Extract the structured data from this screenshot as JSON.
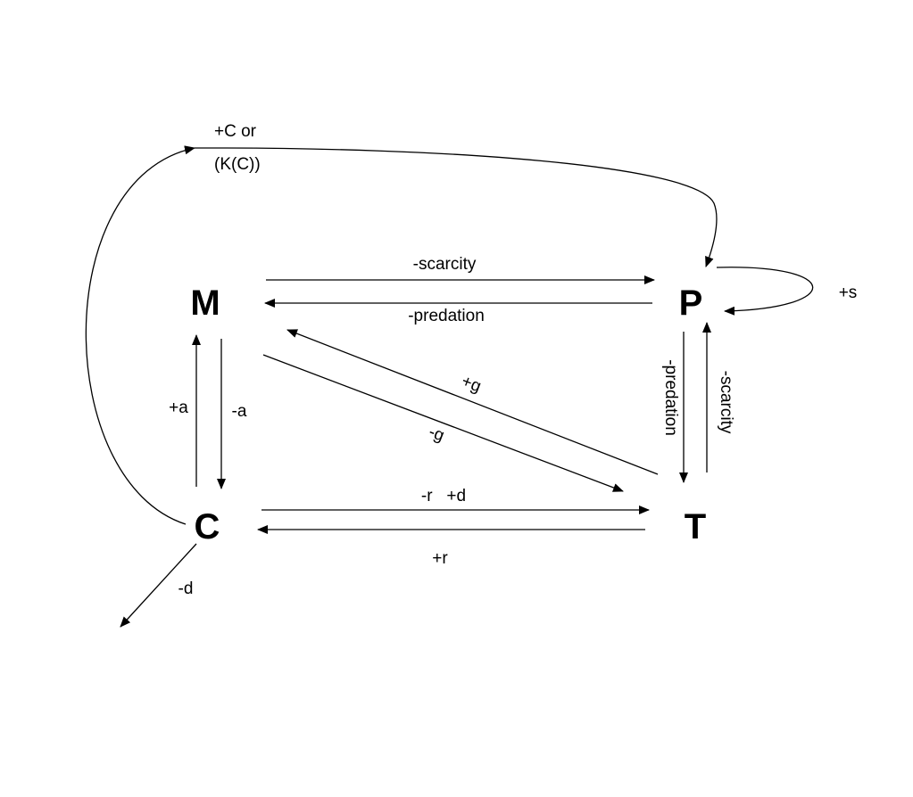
{
  "diagram": {
    "nodes": {
      "M": "M",
      "P": "P",
      "C": "C",
      "T": "T"
    },
    "edges": {
      "m_to_p": "-scarcity",
      "p_to_m": "-predation",
      "p_self": "+s",
      "c_to_m": "+a",
      "m_to_c": "-a",
      "p_to_t": "-predation",
      "t_to_p": "-scarcity",
      "t_to_m": "+g",
      "m_to_t": "-g",
      "c_to_t": "-r   +d",
      "t_to_c": "+r",
      "c_out": "-d",
      "c_to_p_line1": "+C or",
      "c_to_p_line2": "(K(C))"
    }
  }
}
